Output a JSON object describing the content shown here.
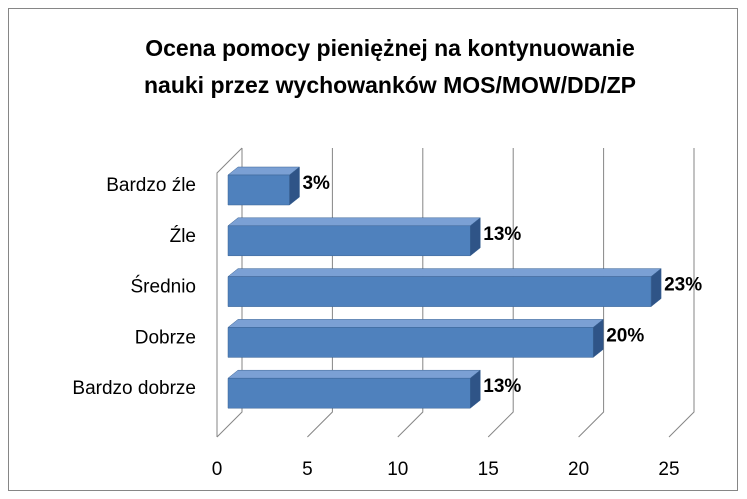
{
  "chart_data": {
    "type": "bar",
    "orientation": "horizontal",
    "three_d": true,
    "title": "Ocena pomocy pieniężnej na kontynuowanie\nnauki przez wychowanków MOS/MOW/DD/ZP",
    "categories": [
      "Bardzo źle",
      "Źle",
      "Średnio",
      "Dobrze",
      "Bardzo dobrze"
    ],
    "values": [
      3.4,
      13.4,
      23.4,
      20.2,
      13.4
    ],
    "value_labels": [
      "3%",
      "13%",
      "23%",
      "20%",
      "13%"
    ],
    "color": "#4f81bd",
    "xlim": [
      0,
      25
    ],
    "xticks": [
      0,
      5,
      10,
      15,
      20,
      25
    ],
    "grid": true
  }
}
